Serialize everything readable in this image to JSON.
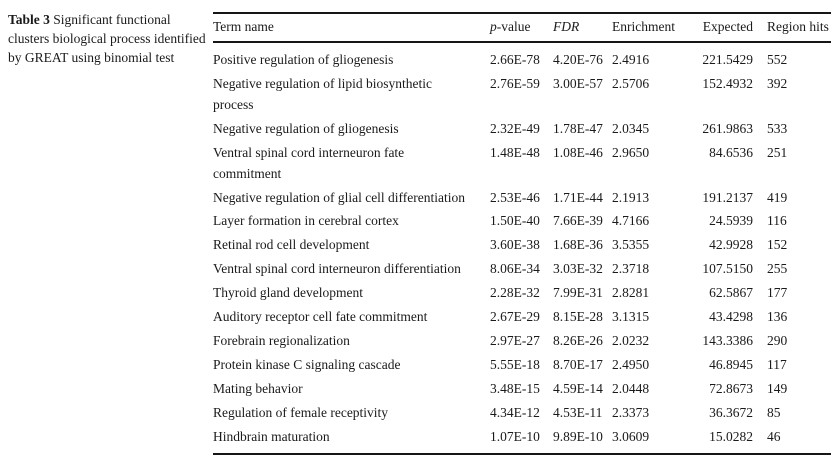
{
  "caption": {
    "label": "Table 3",
    "text": "Significant functional clusters biological process identified by GREAT using binomial test"
  },
  "table": {
    "header": {
      "term": "Term name",
      "p_italic": "p",
      "p_rest": "-value",
      "fdr": "FDR",
      "enrichment": "Enrichment",
      "expected": "Expected",
      "region_hits": "Region hits"
    },
    "rows": [
      {
        "term": "Positive regulation of gliogenesis",
        "p": "2.66E-78",
        "fdr": "4.20E-76",
        "enrichment": "2.4916",
        "expected": "221.5429",
        "hits": "552"
      },
      {
        "term": "Negative regulation of lipid biosynthetic\nprocess",
        "p": "2.76E-59",
        "fdr": "3.00E-57",
        "enrichment": "2.5706",
        "expected": "152.4932",
        "hits": "392"
      },
      {
        "term": "Negative regulation of gliogenesis",
        "p": "2.32E-49",
        "fdr": "1.78E-47",
        "enrichment": "2.0345",
        "expected": "261.9863",
        "hits": "533"
      },
      {
        "term": "Ventral spinal cord interneuron fate\ncommitment",
        "p": "1.48E-48",
        "fdr": "1.08E-46",
        "enrichment": "2.9650",
        "expected": "84.6536",
        "hits": "251"
      },
      {
        "term": "Negative regulation of glial cell differentiation",
        "p": "2.53E-46",
        "fdr": "1.71E-44",
        "enrichment": "2.1913",
        "expected": "191.2137",
        "hits": "419"
      },
      {
        "term": "Layer formation in cerebral cortex",
        "p": "1.50E-40",
        "fdr": "7.66E-39",
        "enrichment": "4.7166",
        "expected": "24.5939",
        "hits": "116"
      },
      {
        "term": "Retinal rod cell development",
        "p": "3.60E-38",
        "fdr": "1.68E-36",
        "enrichment": "3.5355",
        "expected": "42.9928",
        "hits": "152"
      },
      {
        "term": "Ventral spinal cord interneuron differentiation",
        "p": "8.06E-34",
        "fdr": "3.03E-32",
        "enrichment": "2.3718",
        "expected": "107.5150",
        "hits": "255"
      },
      {
        "term": "Thyroid gland development",
        "p": "2.28E-32",
        "fdr": "7.99E-31",
        "enrichment": "2.8281",
        "expected": "62.5867",
        "hits": "177"
      },
      {
        "term": "Auditory receptor cell fate commitment",
        "p": "2.67E-29",
        "fdr": "8.15E-28",
        "enrichment": "3.1315",
        "expected": "43.4298",
        "hits": "136"
      },
      {
        "term": "Forebrain regionalization",
        "p": "2.97E-27",
        "fdr": "8.26E-26",
        "enrichment": "2.0232",
        "expected": "143.3386",
        "hits": "290"
      },
      {
        "term": "Protein kinase C signaling cascade",
        "p": "5.55E-18",
        "fdr": "8.70E-17",
        "enrichment": "2.4950",
        "expected": "46.8945",
        "hits": "117"
      },
      {
        "term": "Mating behavior",
        "p": "3.48E-15",
        "fdr": "4.59E-14",
        "enrichment": "2.0448",
        "expected": "72.8673",
        "hits": "149"
      },
      {
        "term": "Regulation of female receptivity",
        "p": "4.34E-12",
        "fdr": "4.53E-11",
        "enrichment": "2.3373",
        "expected": "36.3672",
        "hits": "85"
      },
      {
        "term": "Hindbrain maturation",
        "p": "1.07E-10",
        "fdr": "9.89E-10",
        "enrichment": "3.0609",
        "expected": "15.0282",
        "hits": "46"
      }
    ]
  },
  "colors": {
    "text": "#1a1a1a",
    "rule": "#161616",
    "background": "#ffffff"
  }
}
